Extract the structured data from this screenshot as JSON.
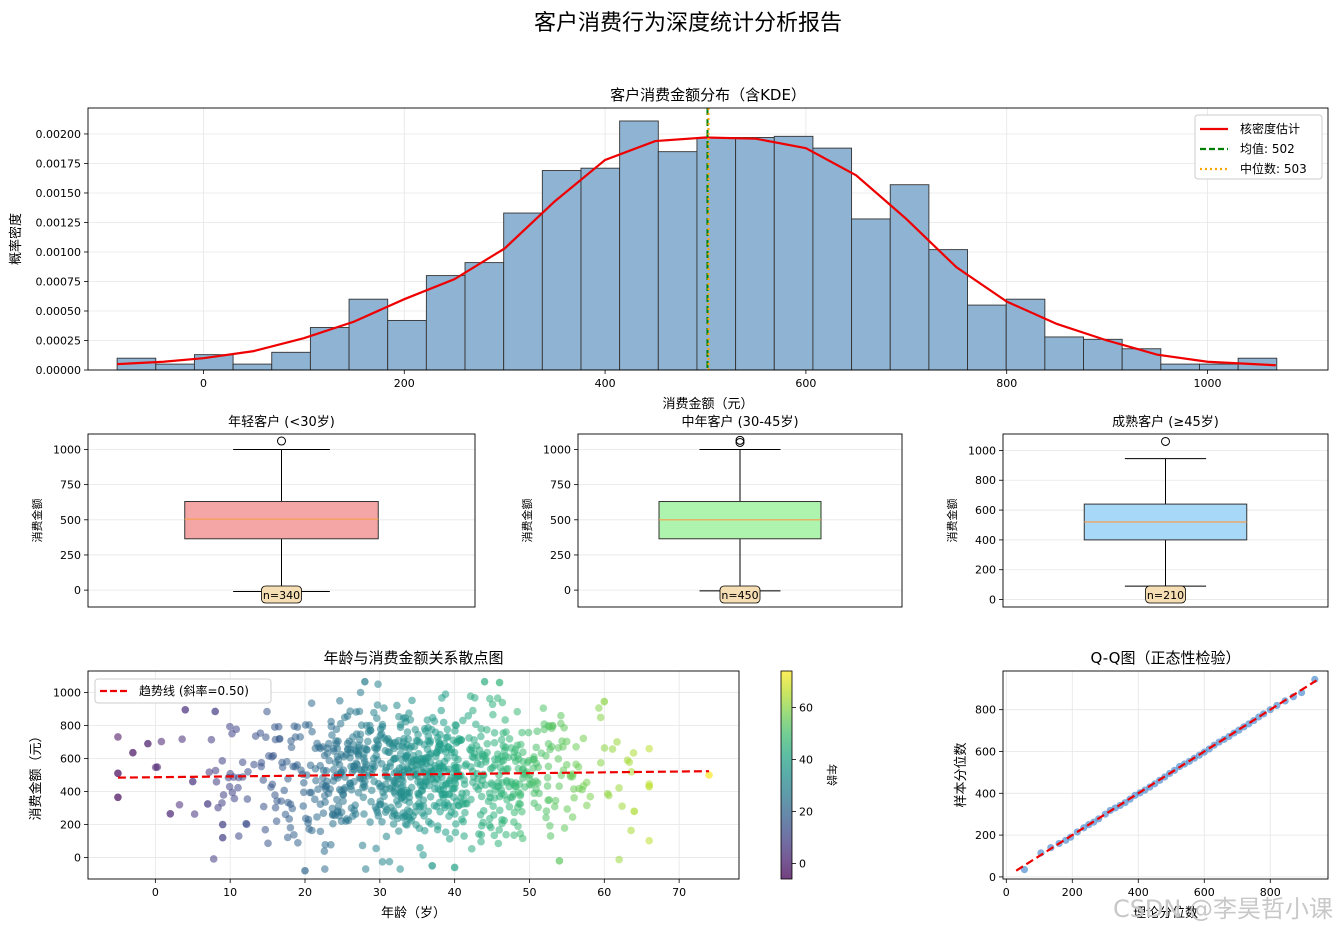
{
  "figure": {
    "suptitle": "客户消费行为深度统计分析报告",
    "watermark": "CSDN @李昊哲小课"
  },
  "chart_data": [
    {
      "id": "hist",
      "type": "bar",
      "title": "客户消费金额分布（含KDE）",
      "xlabel": "消费金额（元）",
      "ylabel": "概率密度",
      "xlim": [
        -115,
        1120
      ],
      "ylim": [
        0,
        0.00222
      ],
      "xticks": [
        0,
        200,
        400,
        600,
        800,
        1000
      ],
      "xtick_labels": [
        "0",
        "200",
        "400",
        "600",
        "800",
        "1000"
      ],
      "yticks": [
        0,
        0.00025,
        0.0005,
        0.00075,
        0.001,
        0.00125,
        0.0015,
        0.00175,
        0.002
      ],
      "ytick_labels": [
        "0.00000",
        "0.00025",
        "0.00050",
        "0.00075",
        "0.00100",
        "0.00125",
        "0.00150",
        "0.00175",
        "0.00200"
      ],
      "bin_start": -86,
      "bin_width": 38.5,
      "densities": [
        0.0001,
        5e-05,
        0.00013,
        5e-05,
        0.00015,
        0.00036,
        0.0006,
        0.00042,
        0.0008,
        0.00091,
        0.00133,
        0.00169,
        0.00171,
        0.00211,
        0.00185,
        0.00197,
        0.00197,
        0.00198,
        0.00188,
        0.00128,
        0.00157,
        0.00102,
        0.00055,
        0.0006,
        0.00028,
        0.00026,
        0.00018,
        5e-05,
        5e-05,
        0.0001
      ],
      "kde": {
        "x": [
          -86,
          -40,
          0,
          50,
          100,
          150,
          200,
          250,
          300,
          350,
          400,
          450,
          500,
          550,
          600,
          650,
          700,
          750,
          800,
          850,
          900,
          950,
          1000,
          1068
        ],
        "y": [
          5e-05,
          7e-05,
          0.0001,
          0.00016,
          0.00027,
          0.00041,
          0.0006,
          0.00077,
          0.00103,
          0.00143,
          0.00178,
          0.00194,
          0.00197,
          0.00196,
          0.00188,
          0.00165,
          0.00128,
          0.00087,
          0.00058,
          0.00039,
          0.00025,
          0.00013,
          7e-05,
          4e-05
        ]
      },
      "mean": 502,
      "median": 503,
      "legend": [
        "核密度估计",
        "均值: 502",
        "中位数: 503"
      ],
      "colors": {
        "bar": "#8fb3d3",
        "kde": "#ee0000",
        "mean": "#008000",
        "median": "#ffa500"
      }
    },
    {
      "id": "box-young",
      "type": "box",
      "title": "年轻客户 (<30岁)",
      "ylabel": "消费金额",
      "ylim": [
        -120,
        1110
      ],
      "yticks": [
        0,
        250,
        500,
        750,
        1000
      ],
      "ytick_labels": [
        "0",
        "250",
        "500",
        "750",
        "1000"
      ],
      "stats": {
        "whisker_low": -10,
        "q1": 365,
        "median": 505,
        "q3": 630,
        "whisker_high": 1000,
        "fliers": [
          1060
        ]
      },
      "count_label": "n=340",
      "color": "#f4a6a6"
    },
    {
      "id": "box-mid",
      "type": "box",
      "title": "中年客户 (30-45岁)",
      "ylabel": "消费金额",
      "ylim": [
        -120,
        1110
      ],
      "yticks": [
        0,
        250,
        500,
        750,
        1000
      ],
      "ytick_labels": [
        "0",
        "250",
        "500",
        "750",
        "1000"
      ],
      "stats": {
        "whisker_low": -5,
        "q1": 365,
        "median": 500,
        "q3": 630,
        "whisker_high": 1000,
        "fliers": [
          1050,
          1065
        ]
      },
      "count_label": "n=450",
      "color": "#aef3ae"
    },
    {
      "id": "box-mature",
      "type": "box",
      "title": "成熟客户 (≥45岁)",
      "ylabel": "消费金额",
      "ylim": [
        -50,
        1110
      ],
      "yticks": [
        0,
        200,
        400,
        600,
        800,
        1000
      ],
      "ytick_labels": [
        "0",
        "200",
        "400",
        "600",
        "800",
        "1000"
      ],
      "stats": {
        "whisker_low": 90,
        "q1": 400,
        "median": 520,
        "q3": 640,
        "whisker_high": 945,
        "fliers": [
          1060
        ]
      },
      "count_label": "n=210",
      "color": "#a7d8f8"
    },
    {
      "id": "scatter",
      "type": "scatter",
      "title": "年龄与消费金额关系散点图",
      "xlabel": "年龄（岁）",
      "ylabel": "消费金额（元）",
      "xlim": [
        -9,
        78
      ],
      "ylim": [
        -130,
        1130
      ],
      "xticks": [
        0,
        10,
        20,
        30,
        40,
        50,
        60,
        70
      ],
      "xtick_labels": [
        "0",
        "10",
        "20",
        "30",
        "40",
        "50",
        "60",
        "70"
      ],
      "yticks": [
        0,
        200,
        400,
        600,
        800,
        1000
      ],
      "ytick_labels": [
        "0",
        "200",
        "400",
        "600",
        "800",
        "1000"
      ],
      "trend": {
        "x": [
          -5,
          74
        ],
        "y": [
          484,
          523
        ]
      },
      "legend": [
        "趋势线 (斜率=0.50)"
      ],
      "colorbar": {
        "label": "年龄",
        "range": [
          -6,
          74
        ],
        "ticks": [
          0,
          20,
          40,
          60
        ],
        "tick_labels": [
          "0",
          "20",
          "40",
          "60"
        ]
      },
      "sample_points": {
        "count": 900,
        "age_mean": 35,
        "age_sd": 12,
        "amount_mean": 500,
        "amount_sd": 200
      },
      "highlighted_points": [
        {
          "x": -3,
          "y": 635
        },
        {
          "x": -5,
          "y": 510
        },
        {
          "x": -5,
          "y": 365
        },
        {
          "x": -1,
          "y": 690
        },
        {
          "x": 2,
          "y": 265
        },
        {
          "x": 4,
          "y": 895
        },
        {
          "x": 5,
          "y": 460
        },
        {
          "x": 7,
          "y": 325
        },
        {
          "x": 8,
          "y": 885
        },
        {
          "x": 9,
          "y": 200
        },
        {
          "x": 9,
          "y": 120
        },
        {
          "x": 20,
          "y": -80
        },
        {
          "x": 28,
          "y": 1065
        },
        {
          "x": 44,
          "y": 1065
        },
        {
          "x": 46,
          "y": 1060
        },
        {
          "x": 37,
          "y": -50
        },
        {
          "x": 40,
          "y": -60
        },
        {
          "x": 54,
          "y": -20
        },
        {
          "x": 60,
          "y": 945
        },
        {
          "x": 64,
          "y": 280
        },
        {
          "x": 66,
          "y": 430
        },
        {
          "x": 74,
          "y": 500
        }
      ]
    },
    {
      "id": "qq",
      "type": "scatter",
      "title": "Q-Q图（正态性检验）",
      "xlabel": "理论分位数",
      "ylabel": "样本分位数",
      "xlim": [
        -10,
        975
      ],
      "ylim": [
        -10,
        985
      ],
      "xticks": [
        0,
        200,
        400,
        600,
        800
      ],
      "xtick_labels": [
        "0",
        "200",
        "400",
        "600",
        "800"
      ],
      "yticks": [
        0,
        200,
        400,
        600,
        800
      ],
      "ytick_labels": [
        "0",
        "200",
        "400",
        "600",
        "800"
      ],
      "line": {
        "x": [
          30,
          940
        ],
        "y": [
          30,
          940
        ]
      },
      "points": [
        [
          55,
          35
        ],
        [
          105,
          115
        ],
        [
          135,
          140
        ],
        [
          160,
          160
        ],
        [
          180,
          175
        ],
        [
          195,
          190
        ],
        [
          215,
          215
        ],
        [
          235,
          235
        ],
        [
          250,
          250
        ],
        [
          265,
          262
        ],
        [
          280,
          278
        ],
        [
          300,
          300
        ],
        [
          315,
          318
        ],
        [
          330,
          330
        ],
        [
          345,
          342
        ],
        [
          360,
          355
        ],
        [
          375,
          372
        ],
        [
          390,
          390
        ],
        [
          405,
          402
        ],
        [
          420,
          415
        ],
        [
          435,
          430
        ],
        [
          450,
          445
        ],
        [
          465,
          462
        ],
        [
          480,
          478
        ],
        [
          495,
          495
        ],
        [
          510,
          510
        ],
        [
          525,
          528
        ],
        [
          540,
          540
        ],
        [
          555,
          553
        ],
        [
          570,
          568
        ],
        [
          585,
          582
        ],
        [
          600,
          597
        ],
        [
          615,
          612
        ],
        [
          630,
          630
        ],
        [
          645,
          645
        ],
        [
          660,
          658
        ],
        [
          675,
          672
        ],
        [
          690,
          688
        ],
        [
          705,
          702
        ],
        [
          720,
          718
        ],
        [
          735,
          732
        ],
        [
          750,
          748
        ],
        [
          765,
          765
        ],
        [
          780,
          780
        ],
        [
          800,
          800
        ],
        [
          820,
          820
        ],
        [
          845,
          842
        ],
        [
          870,
          862
        ],
        [
          895,
          882
        ],
        [
          935,
          945
        ]
      ]
    }
  ]
}
